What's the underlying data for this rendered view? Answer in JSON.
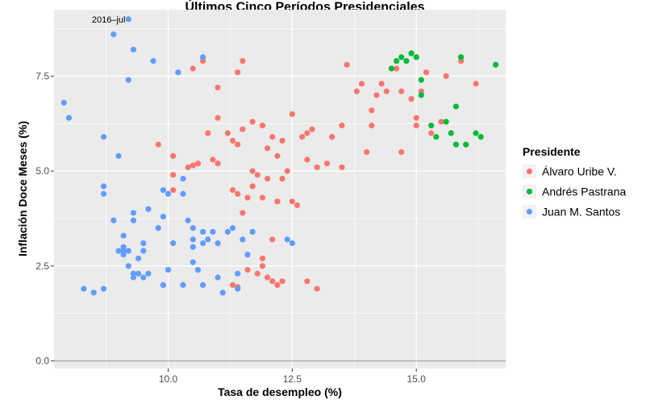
{
  "chart_data": {
    "type": "scatter",
    "title": "Últimos Cinco Períodos Presidenciales",
    "xlabel": "Tasa de desempleo (%)",
    "ylabel": "Inflación Doce Meses (%)",
    "xlim": [
      7.7,
      16.8
    ],
    "ylim": [
      -0.2,
      9.25
    ],
    "x_ticks": [
      10.0,
      12.5,
      15.0
    ],
    "x_tick_labels": [
      "10.0",
      "12.5",
      "15.0"
    ],
    "y_ticks": [
      0.0,
      2.5,
      5.0,
      7.5
    ],
    "y_tick_labels": [
      "0.0",
      "2.5",
      "5.0",
      "7.5"
    ],
    "hline": 0,
    "grid": true,
    "legend": {
      "title": "Presidente",
      "placement": "right"
    },
    "annotations": [
      {
        "text": "2016–jul",
        "x": 8.8,
        "y": 9.0
      }
    ],
    "series": [
      {
        "name": "Álvaro Uribe V.",
        "color": "#F8766D",
        "points": [
          [
            9.8,
            5.7
          ],
          [
            10.1,
            5.4
          ],
          [
            10.1,
            4.9
          ],
          [
            10.1,
            4.5
          ],
          [
            10.4,
            5.1
          ],
          [
            10.5,
            5.15
          ],
          [
            10.6,
            5.2
          ],
          [
            10.8,
            6.0
          ],
          [
            10.9,
            5.3
          ],
          [
            11.0,
            5.2
          ],
          [
            11.0,
            6.4
          ],
          [
            11.0,
            7.2
          ],
          [
            11.2,
            6.0
          ],
          [
            11.3,
            5.8
          ],
          [
            11.3,
            4.5
          ],
          [
            11.4,
            4.4
          ],
          [
            11.4,
            5.7
          ],
          [
            11.5,
            6.1
          ],
          [
            11.5,
            3.9
          ],
          [
            11.6,
            4.3
          ],
          [
            11.7,
            4.6
          ],
          [
            11.7,
            5.0
          ],
          [
            11.7,
            6.3
          ],
          [
            11.8,
            4.9
          ],
          [
            11.9,
            4.3
          ],
          [
            11.9,
            6.2
          ],
          [
            12.0,
            5.6
          ],
          [
            12.0,
            4.8
          ],
          [
            12.1,
            5.9
          ],
          [
            12.2,
            5.4
          ],
          [
            12.2,
            4.2
          ],
          [
            12.3,
            5.8
          ],
          [
            12.3,
            4.8
          ],
          [
            12.4,
            5.0
          ],
          [
            12.5,
            6.5
          ],
          [
            12.5,
            4.2
          ],
          [
            12.6,
            4.1
          ],
          [
            12.7,
            5.9
          ],
          [
            12.8,
            5.3
          ],
          [
            12.8,
            6.0
          ],
          [
            12.9,
            6.1
          ],
          [
            13.0,
            5.1
          ],
          [
            13.2,
            5.2
          ],
          [
            13.3,
            5.9
          ],
          [
            13.5,
            6.2
          ],
          [
            13.5,
            5.1
          ],
          [
            13.6,
            7.8
          ],
          [
            13.8,
            7.1
          ],
          [
            13.9,
            7.3
          ],
          [
            14.0,
            5.5
          ],
          [
            14.1,
            6.2
          ],
          [
            14.1,
            6.6
          ],
          [
            14.2,
            7.0
          ],
          [
            14.3,
            7.3
          ],
          [
            14.4,
            7.1
          ],
          [
            14.6,
            7.7
          ],
          [
            14.7,
            7.1
          ],
          [
            14.7,
            5.5
          ],
          [
            14.9,
            6.9
          ],
          [
            15.0,
            6.2
          ],
          [
            15.0,
            6.4
          ],
          [
            15.1,
            7.1
          ],
          [
            15.2,
            7.6
          ],
          [
            15.3,
            6.0
          ],
          [
            15.5,
            6.3
          ],
          [
            15.6,
            7.5
          ],
          [
            15.9,
            7.9
          ],
          [
            16.2,
            7.3
          ],
          [
            10.5,
            7.7
          ],
          [
            10.7,
            7.9
          ],
          [
            11.4,
            7.6
          ],
          [
            11.5,
            7.9
          ],
          [
            11.3,
            2.0
          ],
          [
            11.6,
            2.4
          ],
          [
            11.8,
            2.3
          ],
          [
            11.9,
            2.5
          ],
          [
            12.0,
            2.2
          ],
          [
            12.1,
            2.1
          ],
          [
            12.1,
            3.2
          ],
          [
            12.2,
            2.0
          ],
          [
            12.3,
            2.1
          ],
          [
            12.8,
            2.1
          ],
          [
            13.0,
            1.9
          ],
          [
            11.9,
            2.7
          ],
          [
            11.7,
            3.4
          ],
          [
            12.2,
            4.2
          ],
          [
            11.4,
            1.95
          ]
        ]
      },
      {
        "name": "Andrés Pastrana",
        "color": "#00BA38",
        "points": [
          [
            14.5,
            7.7
          ],
          [
            14.6,
            7.9
          ],
          [
            14.7,
            8.0
          ],
          [
            14.8,
            7.9
          ],
          [
            14.9,
            8.1
          ],
          [
            15.0,
            8.0
          ],
          [
            15.1,
            7.4
          ],
          [
            15.1,
            7.0
          ],
          [
            15.3,
            6.2
          ],
          [
            15.4,
            5.9
          ],
          [
            15.6,
            6.3
          ],
          [
            15.7,
            6.0
          ],
          [
            15.8,
            6.7
          ],
          [
            15.9,
            8.0
          ],
          [
            16.0,
            5.7
          ],
          [
            16.3,
            5.9
          ],
          [
            16.6,
            7.8
          ],
          [
            15.8,
            5.7
          ],
          [
            16.2,
            6.0
          ]
        ]
      },
      {
        "name": "Juan M. Santos",
        "color": "#619CFF",
        "points": [
          [
            7.9,
            6.8
          ],
          [
            8.0,
            6.4
          ],
          [
            8.3,
            1.9
          ],
          [
            8.5,
            1.8
          ],
          [
            8.7,
            1.9
          ],
          [
            8.7,
            4.6
          ],
          [
            8.7,
            4.4
          ],
          [
            8.7,
            5.9
          ],
          [
            8.9,
            3.7
          ],
          [
            9.0,
            2.9
          ],
          [
            9.0,
            5.4
          ],
          [
            9.1,
            2.9
          ],
          [
            9.1,
            3.0
          ],
          [
            9.1,
            3.3
          ],
          [
            9.2,
            2.5
          ],
          [
            9.2,
            2.9
          ],
          [
            9.2,
            7.4
          ],
          [
            9.3,
            2.2
          ],
          [
            9.3,
            2.3
          ],
          [
            9.3,
            3.9
          ],
          [
            9.3,
            3.7
          ],
          [
            9.4,
            2.3
          ],
          [
            9.5,
            3.1
          ],
          [
            9.5,
            2.9
          ],
          [
            9.5,
            2.2
          ],
          [
            9.6,
            2.3
          ],
          [
            9.6,
            4.0
          ],
          [
            9.7,
            7.9
          ],
          [
            9.8,
            3.5
          ],
          [
            9.9,
            2.0
          ],
          [
            9.9,
            3.8
          ],
          [
            9.9,
            4.5
          ],
          [
            10.0,
            2.4
          ],
          [
            10.0,
            4.4
          ],
          [
            10.1,
            3.1
          ],
          [
            10.2,
            7.6
          ],
          [
            10.3,
            2.0
          ],
          [
            10.3,
            4.4
          ],
          [
            10.3,
            4.8
          ],
          [
            10.4,
            3.7
          ],
          [
            10.5,
            3.5
          ],
          [
            10.5,
            3.2
          ],
          [
            10.5,
            3.0
          ],
          [
            10.5,
            2.6
          ],
          [
            10.6,
            2.4
          ],
          [
            10.7,
            3.4
          ],
          [
            10.7,
            2.0
          ],
          [
            10.7,
            3.1
          ],
          [
            10.8,
            3.2
          ],
          [
            10.9,
            3.4
          ],
          [
            11.0,
            2.2
          ],
          [
            11.0,
            3.1
          ],
          [
            11.1,
            1.8
          ],
          [
            11.2,
            3.4
          ],
          [
            11.3,
            3.5
          ],
          [
            11.4,
            1.9
          ],
          [
            11.4,
            2.3
          ],
          [
            11.5,
            3.2
          ],
          [
            11.6,
            2.8
          ],
          [
            11.7,
            3.4
          ],
          [
            12.4,
            3.2
          ],
          [
            12.5,
            3.1
          ],
          [
            10.7,
            8.0
          ],
          [
            9.3,
            8.2
          ],
          [
            8.9,
            8.6
          ],
          [
            9.2,
            9.0
          ],
          [
            9.1,
            2.8
          ],
          [
            9.4,
            2.7
          ]
        ]
      }
    ]
  }
}
